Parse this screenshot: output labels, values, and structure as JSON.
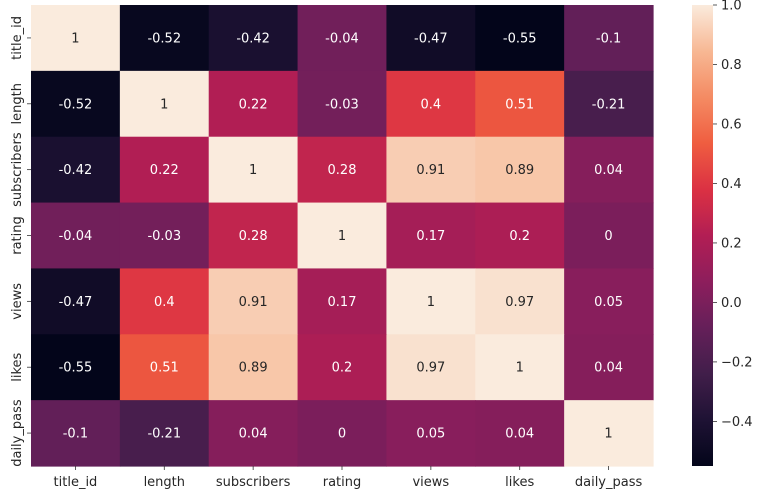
{
  "chart_data": {
    "type": "heatmap",
    "title": "",
    "xlabel": "",
    "ylabel": "",
    "x_labels": [
      "title_id",
      "length",
      "subscribers",
      "rating",
      "views",
      "likes",
      "daily_pass"
    ],
    "y_labels": [
      "title_id",
      "length",
      "subscribers",
      "rating",
      "views",
      "likes",
      "daily_pass"
    ],
    "values": [
      [
        1,
        -0.52,
        -0.42,
        -0.04,
        -0.47,
        -0.55,
        -0.1
      ],
      [
        -0.52,
        1,
        0.22,
        -0.03,
        0.4,
        0.51,
        -0.21
      ],
      [
        -0.42,
        0.22,
        1,
        0.28,
        0.91,
        0.89,
        0.04
      ],
      [
        -0.04,
        -0.03,
        0.28,
        1,
        0.17,
        0.2,
        0
      ],
      [
        -0.47,
        0.4,
        0.91,
        0.17,
        1,
        0.97,
        0.05
      ],
      [
        -0.55,
        0.51,
        0.89,
        0.2,
        0.97,
        1,
        0.04
      ],
      [
        -0.1,
        -0.21,
        0.04,
        0,
        0.05,
        0.04,
        1
      ]
    ],
    "value_range": [
      -0.55,
      1.0
    ],
    "colorbar": {
      "ticks": [
        -0.4,
        -0.2,
        0.0,
        0.2,
        0.4,
        0.6,
        0.8,
        1.0
      ],
      "tick_labels": [
        "−0.4",
        "−0.2",
        "0.0",
        "0.2",
        "0.4",
        "0.6",
        "0.8",
        "1.0"
      ]
    },
    "colormap": "rocket",
    "annotations": true,
    "grid": false,
    "legend": "colorbar-right"
  }
}
